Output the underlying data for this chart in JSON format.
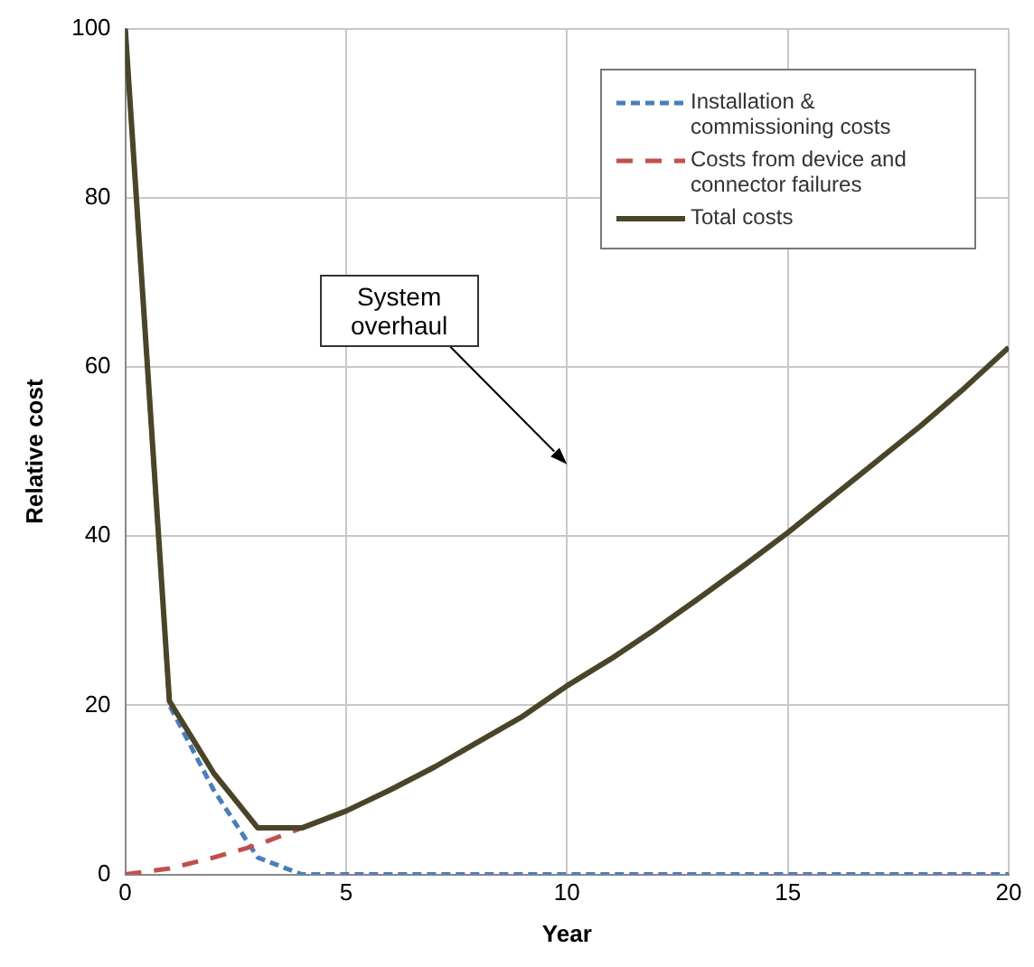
{
  "chart_data": {
    "type": "line",
    "xlabel": "Year",
    "ylabel": "Relative cost",
    "x": [
      0,
      1,
      2,
      3,
      4,
      5,
      6,
      7,
      8,
      9,
      10,
      11,
      12,
      13,
      14,
      15,
      16,
      17,
      18,
      19,
      20
    ],
    "xlim": [
      0,
      20
    ],
    "xticks": [
      0,
      5,
      10,
      15,
      20
    ],
    "ylim": [
      0,
      100
    ],
    "yticks": [
      0,
      20,
      40,
      60,
      80,
      100
    ],
    "grid": true,
    "legend": "top right",
    "marker": "none",
    "series": [
      {
        "name": "Installation & commissioning costs",
        "color": "#4a7ebb",
        "line_style": "dashed",
        "values": [
          100,
          20,
          10,
          2,
          0,
          0,
          0,
          0,
          0,
          0,
          0,
          0,
          0,
          0,
          0,
          0,
          0,
          0,
          0,
          0,
          0
        ]
      },
      {
        "name": "Costs from device and connector failures",
        "color": "#c0504d",
        "line_style": "dashed",
        "values": [
          0,
          0.7,
          2,
          3.5,
          5.5,
          null,
          null,
          null,
          null,
          null,
          null,
          null,
          null,
          null,
          null,
          null,
          null,
          null,
          null,
          null,
          null
        ]
      },
      {
        "name": "Total costs",
        "color": "#4a4429",
        "line_style": "solid",
        "values": [
          100,
          20.5,
          12,
          5.5,
          5.5,
          7.5,
          10,
          12.7,
          15.7,
          18.7,
          22.3,
          25.5,
          29,
          32.7,
          36.5,
          40.4,
          44.6,
          48.8,
          53,
          57.5,
          62.3
        ]
      }
    ],
    "annotations": [
      "System overhaul"
    ]
  }
}
